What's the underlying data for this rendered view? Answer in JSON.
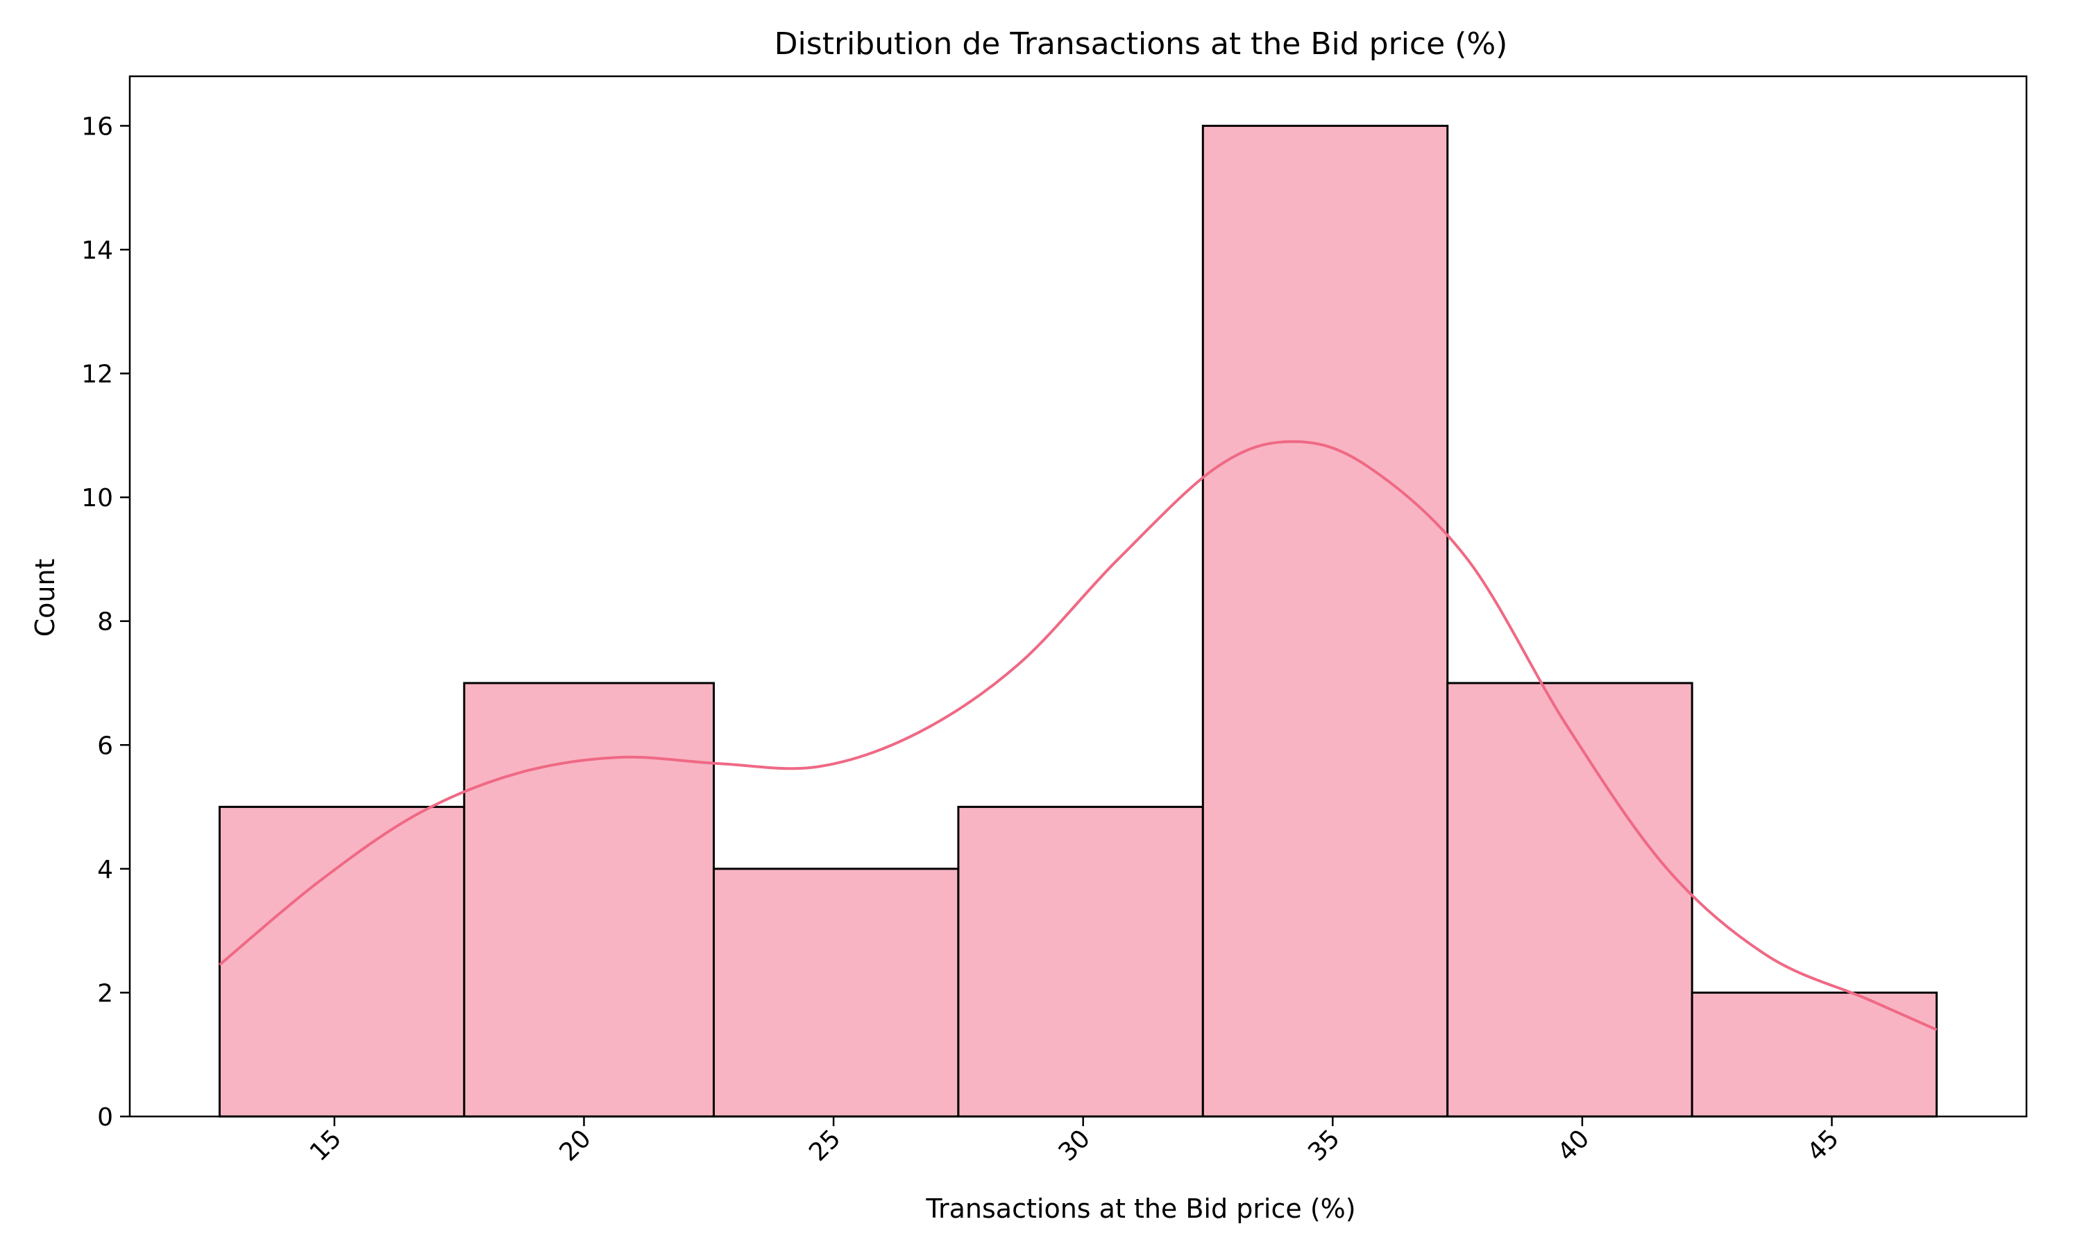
{
  "chart_data": {
    "type": "bar",
    "title": "Distribution de Transactions at the Bid price (%)",
    "xlabel": "Transactions at the Bid price (%)",
    "ylabel": "Count",
    "bin_edges": [
      12.7,
      17.6,
      22.6,
      27.5,
      32.4,
      37.3,
      42.2,
      47.1
    ],
    "values": [
      5,
      7,
      4,
      5,
      16,
      7,
      2
    ],
    "xlim": [
      10.9,
      48.9
    ],
    "ylim": [
      0,
      16.8
    ],
    "xticks": [
      15,
      20,
      25,
      30,
      35,
      40,
      45
    ],
    "xtick_labels": [
      "15",
      "20",
      "25",
      "30",
      "35",
      "40",
      "45"
    ],
    "yticks": [
      0,
      2,
      4,
      6,
      8,
      10,
      12,
      14,
      16
    ],
    "ytick_labels": [
      "0",
      "2",
      "4",
      "6",
      "8",
      "10",
      "12",
      "14",
      "16"
    ],
    "kde": {
      "x": [
        12.7,
        14.7,
        16.7,
        18.7,
        20.7,
        22.7,
        24.7,
        26.7,
        28.7,
        30.7,
        32.7,
        34.2,
        35.7,
        37.7,
        39.7,
        41.7,
        43.7,
        45.7,
        47.1
      ],
      "y": [
        2.45,
        3.8,
        4.9,
        5.55,
        5.8,
        5.7,
        5.65,
        6.2,
        7.3,
        9.0,
        10.5,
        10.9,
        10.5,
        9.0,
        6.3,
        4.0,
        2.6,
        1.9,
        1.4
      ]
    },
    "bar_fill": "#f9b4c3",
    "bar_edge": "#000000",
    "kde_color": "#ef6985",
    "grid": false
  }
}
